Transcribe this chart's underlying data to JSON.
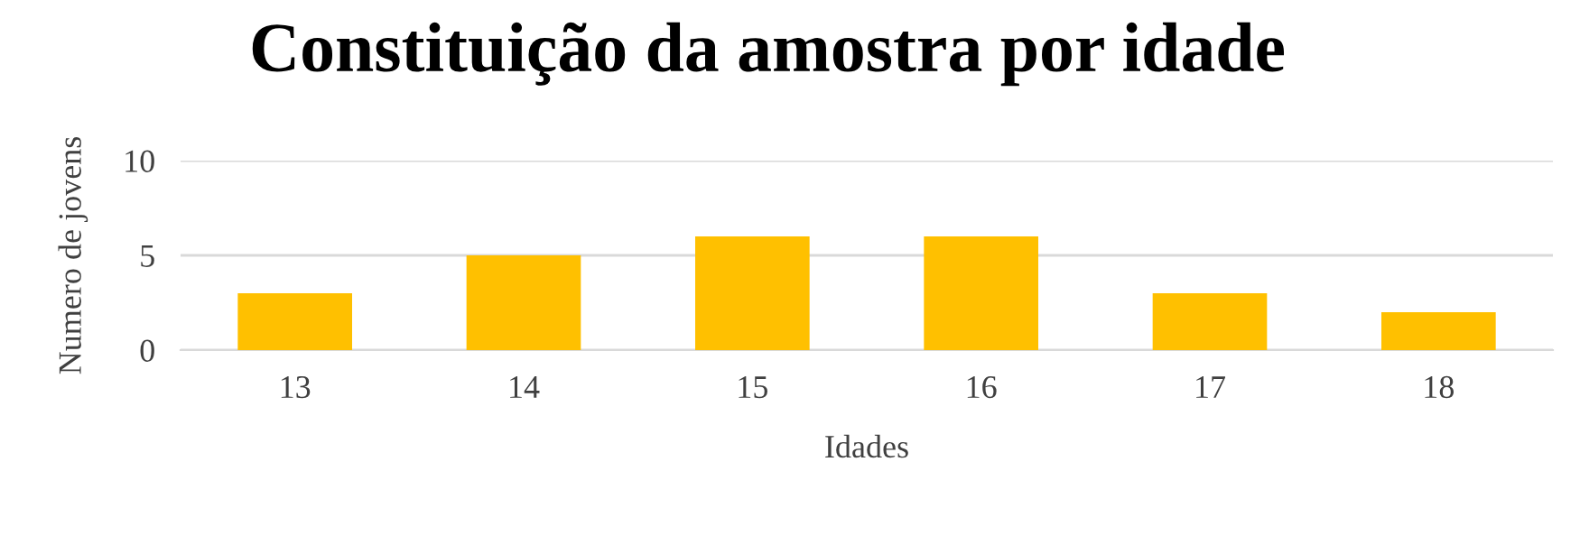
{
  "chart_data": {
    "type": "bar",
    "title": "Constituição da amostra por idade",
    "xlabel": "Idades",
    "ylabel": "Numero de jovens",
    "categories": [
      "13",
      "14",
      "15",
      "16",
      "17",
      "18"
    ],
    "values": [
      3,
      5,
      6,
      6,
      3,
      2
    ],
    "color": "#ffc000",
    "ylim": [
      0,
      10
    ],
    "yticks": [
      0,
      5,
      10
    ],
    "grid": "y"
  }
}
